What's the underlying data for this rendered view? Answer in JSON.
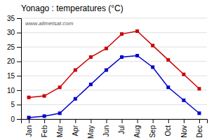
{
  "chart_data": {
    "type": "line",
    "title": "Yonago : temperatures (°C)",
    "categories": [
      "Jan",
      "Feb",
      "Mar",
      "Apr",
      "May",
      "Jun",
      "Jul",
      "Aug",
      "Sep",
      "Oct",
      "Nov",
      "Dec"
    ],
    "series": [
      {
        "color": "#cc0000",
        "marker": "square",
        "values": [
          7.5,
          8.0,
          11.0,
          17.0,
          21.5,
          24.5,
          29.5,
          30.5,
          25.5,
          20.5,
          15.5,
          10.5
        ]
      },
      {
        "color": "#0000cc",
        "marker": "square",
        "values": [
          0.5,
          1.0,
          2.0,
          7.0,
          12.0,
          17.0,
          21.5,
          22.0,
          18.0,
          11.0,
          6.5,
          2.0
        ]
      }
    ],
    "ylim": [
      0,
      35
    ],
    "yticks": [
      0,
      5,
      10,
      15,
      20,
      25,
      30,
      35
    ],
    "grid": true,
    "annotations": [
      "www.allmetsat.com"
    ]
  }
}
